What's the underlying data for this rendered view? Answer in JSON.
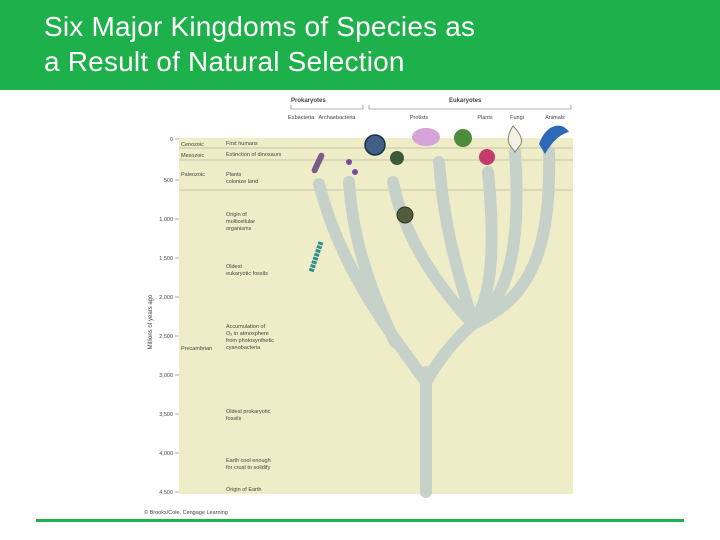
{
  "slide": {
    "title_line1": "Six Major Kingdoms of Species as",
    "title_line2": "a Result of Natural Selection",
    "accent_color": "#1eb04a"
  },
  "figure": {
    "group_prokaryotes": "Prokaryotes",
    "group_eukaryotes": "Eukaryotes",
    "kingdoms": [
      "Eubacteria",
      "Archaebacteria",
      "Protists",
      "Plants",
      "Fungi",
      "Animals"
    ],
    "era_labels": [
      "Cenozoic",
      "Mesozoic",
      "Paleozoic",
      "Precambrian"
    ],
    "axis_label": "Millions of years ago",
    "axis_ticks": [
      "0",
      "500",
      "1,000",
      "1,500",
      "2,000",
      "2,500",
      "3,000",
      "3,500",
      "4,000",
      "4,500"
    ],
    "events": [
      [
        "First humans"
      ],
      [
        "Extinction of dinosaurs"
      ],
      [
        "Plants",
        "colonize land"
      ],
      [
        "Origin of",
        "multicellular",
        "organisms"
      ],
      [
        "Oldest",
        "eukaryotic fossils"
      ],
      [
        "Accumulation of",
        "O₂ in atmosphere",
        "from photosynthetic",
        "cyanobacteria"
      ],
      [
        "Oldest prokaryotic",
        "fossils"
      ],
      [
        "Earth cool enough",
        "for crust to solidify"
      ],
      [
        "Origin of Earth"
      ]
    ],
    "credit": "© Brooks/Cole, Cengage Learning",
    "background_color": "#efedc8",
    "tree_color": "#c6d2c9"
  }
}
